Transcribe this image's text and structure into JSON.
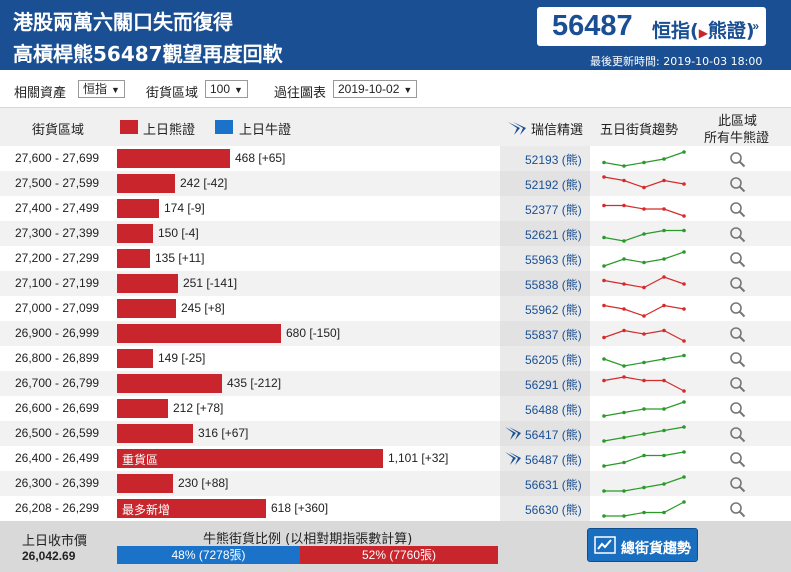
{
  "header": {
    "headline_1": "港股兩萬六關口失而復得",
    "headline_2": "高槓桿熊56487觀望再度回軟",
    "ticker_code": "56487",
    "ticker_label_1": "恒指(",
    "ticker_label_2": "熊證)",
    "update_time": "最後更新時間: 2019-10-03 18:00"
  },
  "filters": {
    "asset_label": "相關資產",
    "asset_value": "恒指",
    "zone_label": "街貨區域",
    "zone_value": "100",
    "history_label": "過往圖表",
    "history_value": "2019-10-02"
  },
  "table_header": {
    "range": "街貨區域",
    "bear_legend": "上日熊證",
    "bull_legend": "上日牛證",
    "pick": "瑞信精選",
    "trend": "五日街貨趨勢",
    "all_1": "此區域",
    "all_2": "所有牛熊證"
  },
  "colors": {
    "bear": "#c8262c",
    "bull": "#1a73c8",
    "brand": "#1a4f93",
    "trend_up": "#2a9a2a",
    "trend_down": "#d62b2b"
  },
  "rows": [
    {
      "range": "27,600 - 27,699",
      "value": 468,
      "label": "468 [+65]",
      "tag": "",
      "code": "52193 (熊)",
      "pick": false,
      "trend": "up",
      "series": [
        2,
        1,
        2,
        3,
        5
      ]
    },
    {
      "range": "27,500 - 27,599",
      "value": 242,
      "label": "242 [-42]",
      "tag": "",
      "code": "52192 (熊)",
      "pick": false,
      "trend": "down",
      "series": [
        5,
        4,
        2,
        4,
        3
      ]
    },
    {
      "range": "27,400 - 27,499",
      "value": 174,
      "label": "174 [-9]",
      "tag": "",
      "code": "52377 (熊)",
      "pick": false,
      "trend": "down",
      "series": [
        4,
        4,
        3,
        3,
        1
      ]
    },
    {
      "range": "27,300 - 27,399",
      "value": 150,
      "label": "150 [-4]",
      "tag": "",
      "code": "52621 (熊)",
      "pick": false,
      "trend": "up",
      "series": [
        2,
        1,
        3,
        4,
        4
      ]
    },
    {
      "range": "27,200 - 27,299",
      "value": 135,
      "label": "135 [+11]",
      "tag": "",
      "code": "55963 (熊)",
      "pick": false,
      "trend": "up",
      "series": [
        1,
        3,
        2,
        3,
        5
      ]
    },
    {
      "range": "27,100 - 27,199",
      "value": 251,
      "label": "251 [-141]",
      "tag": "",
      "code": "55838 (熊)",
      "pick": false,
      "trend": "down",
      "series": [
        4,
        3,
        2,
        5,
        3
      ]
    },
    {
      "range": "27,000 - 27,099",
      "value": 245,
      "label": "245 [+8]",
      "tag": "",
      "code": "55962 (熊)",
      "pick": false,
      "trend": "down",
      "series": [
        4,
        3,
        1,
        4,
        3
      ]
    },
    {
      "range": "26,900 - 26,999",
      "value": 680,
      "label": "680 [-150]",
      "tag": "",
      "code": "55837 (熊)",
      "pick": false,
      "trend": "down",
      "series": [
        2,
        4,
        3,
        4,
        1
      ]
    },
    {
      "range": "26,800 - 26,899",
      "value": 149,
      "label": "149 [-25]",
      "tag": "",
      "code": "56205 (熊)",
      "pick": false,
      "trend": "up",
      "series": [
        3,
        1,
        2,
        3,
        4
      ]
    },
    {
      "range": "26,700 - 26,799",
      "value": 435,
      "label": "435 [-212]",
      "tag": "",
      "code": "56291 (熊)",
      "pick": false,
      "trend": "down",
      "series": [
        4,
        5,
        4,
        4,
        1
      ]
    },
    {
      "range": "26,600 - 26,699",
      "value": 212,
      "label": "212 [+78]",
      "tag": "",
      "code": "56488 (熊)",
      "pick": false,
      "trend": "up",
      "series": [
        1,
        2,
        3,
        3,
        5
      ]
    },
    {
      "range": "26,500 - 26,599",
      "value": 316,
      "label": "316 [+67]",
      "tag": "",
      "code": "56417 (熊)",
      "pick": true,
      "trend": "up",
      "series": [
        1,
        2,
        3,
        4,
        5
      ]
    },
    {
      "range": "26,400 - 26,499",
      "value": 1101,
      "label": "1,101 [+32]",
      "tag": "重貨區",
      "code": "56487 (熊)",
      "pick": true,
      "trend": "up",
      "series": [
        1,
        2,
        4,
        4,
        5
      ]
    },
    {
      "range": "26,300 - 26,399",
      "value": 230,
      "label": "230 [+88]",
      "tag": "",
      "code": "56631 (熊)",
      "pick": false,
      "trend": "up",
      "series": [
        1,
        1,
        2,
        3,
        5
      ]
    },
    {
      "range": "26,208 - 26,299",
      "value": 618,
      "label": "618 [+360]",
      "tag": "最多新增",
      "code": "56630 (熊)",
      "pick": false,
      "trend": "up",
      "series": [
        1,
        1,
        2,
        2,
        5
      ]
    }
  ],
  "footer": {
    "close_label": "上日收市價",
    "close_value": "26,042.69",
    "ratio_title": "牛熊街貨比例 (以相對期指張數計算)",
    "bull_pct": 48,
    "bull_label": "48% (7278張)",
    "bear_pct": 52,
    "bear_label": "52% (7760張)",
    "trend_button": "總街貨趨勢"
  }
}
